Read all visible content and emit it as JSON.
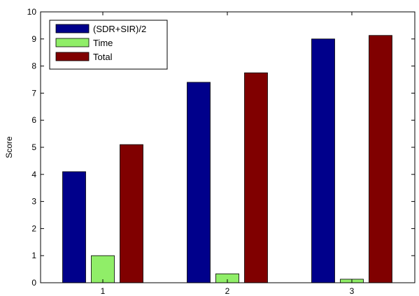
{
  "chart_data": {
    "type": "bar",
    "categories": [
      "1",
      "2",
      "3"
    ],
    "series": [
      {
        "name": "(SDR+SIR)/2",
        "values": [
          4.1,
          7.4,
          9.0
        ],
        "color": "#00008b"
      },
      {
        "name": "Time",
        "values": [
          1.0,
          0.33,
          0.13
        ],
        "color": "#90ee68"
      },
      {
        "name": "Total",
        "values": [
          5.1,
          7.75,
          9.13
        ],
        "color": "#800000"
      }
    ],
    "title": "",
    "xlabel": "",
    "ylabel": "Score",
    "ylim": [
      0,
      10
    ],
    "yticks": [
      0,
      1,
      2,
      3,
      4,
      5,
      6,
      7,
      8,
      9,
      10
    ],
    "grid": false,
    "legend_position": "top-left"
  }
}
